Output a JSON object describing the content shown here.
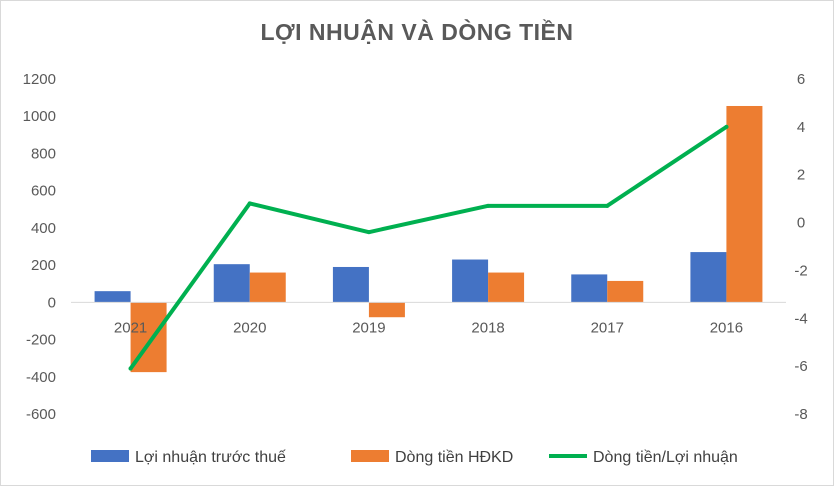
{
  "chart_data": {
    "type": "bar",
    "title": "LỢI NHUẬN VÀ DÒNG TIỀN",
    "categories": [
      "2021",
      "2020",
      "2019",
      "2018",
      "2017",
      "2016"
    ],
    "series": [
      {
        "name": "Lợi nhuận trước thuế",
        "type": "bar",
        "axis": "left",
        "color": "#4472C4",
        "values": [
          60,
          205,
          190,
          230,
          150,
          270
        ]
      },
      {
        "name": "Dòng tiền HĐKD",
        "type": "bar",
        "axis": "left",
        "color": "#ED7D31",
        "values": [
          -375,
          160,
          -80,
          160,
          115,
          1055
        ]
      },
      {
        "name": "Dòng tiền/Lợi nhuận",
        "type": "line",
        "axis": "right",
        "color": "#00B050",
        "values": [
          -6.1,
          0.8,
          -0.4,
          0.7,
          0.7,
          4.0
        ]
      }
    ],
    "y_left": {
      "min": -600,
      "max": 1200,
      "ticks": [
        "1200",
        "1000",
        "800",
        "600",
        "400",
        "200",
        "0",
        "-200",
        "-400",
        "-600"
      ]
    },
    "y_right": {
      "min": -8,
      "max": 6,
      "ticks": [
        "6",
        "4",
        "2",
        "0",
        "-2",
        "-4",
        "-6",
        "-8"
      ]
    },
    "grid": false,
    "legend": "bottom"
  }
}
